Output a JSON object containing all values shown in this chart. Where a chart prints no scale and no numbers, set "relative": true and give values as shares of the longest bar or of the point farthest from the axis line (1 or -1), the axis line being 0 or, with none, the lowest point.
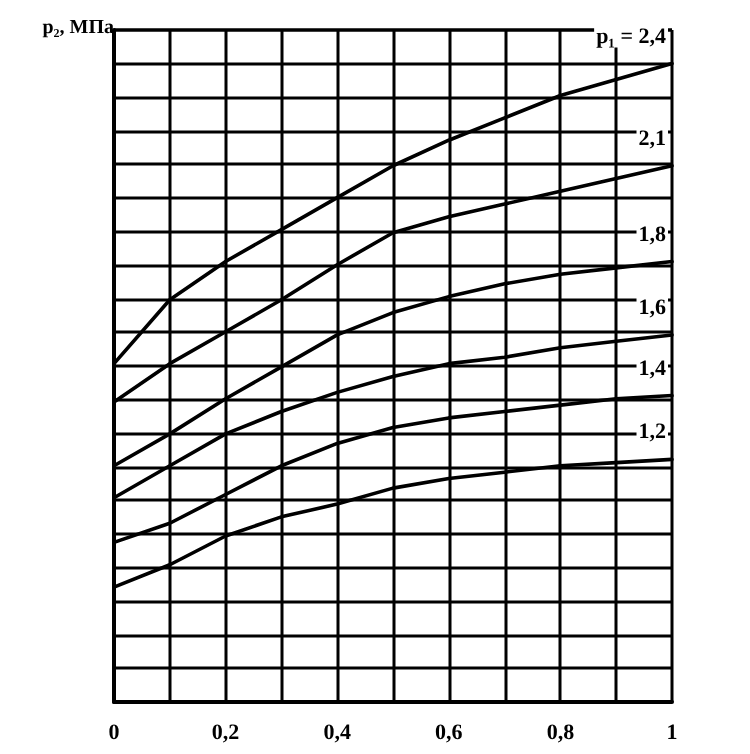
{
  "chart_data": {
    "type": "line",
    "relative": true,
    "ylabel": "p₂, МПа",
    "x": [
      0,
      0.1,
      0.2,
      0.3,
      0.4,
      0.5,
      0.6,
      0.7,
      0.8,
      0.9,
      1
    ],
    "xlim": [
      0,
      1
    ],
    "xticks": [
      0,
      {
        "value": 0.1,
        "label": null
      },
      {
        "value": 0.2,
        "label": "0,2"
      },
      {
        "value": 0.3,
        "label": null
      },
      {
        "value": 0.4,
        "label": "0,4"
      },
      {
        "value": 0.5,
        "label": null
      },
      {
        "value": 0.6,
        "label": "0,6"
      },
      {
        "value": 0.7,
        "label": null
      },
      {
        "value": 0.8,
        "label": "0,8"
      },
      {
        "value": 0.9,
        "label": null
      },
      1
    ],
    "series": [
      {
        "name": "p₁ = 2,4",
        "color": "#000000",
        "values": [
          0.53,
          0.63,
          0.69,
          0.74,
          0.79,
          0.84,
          0.88,
          0.915,
          0.95,
          0.975,
          1.0
        ]
      },
      {
        "name": "2,1",
        "color": "#000000",
        "values": [
          0.47,
          0.53,
          0.58,
          0.63,
          0.685,
          0.735,
          0.76,
          0.78,
          0.8,
          0.82,
          0.84
        ]
      },
      {
        "name": "1,8",
        "color": "#000000",
        "values": [
          0.37,
          0.42,
          0.475,
          0.525,
          0.575,
          0.61,
          0.635,
          0.655,
          0.67,
          0.68,
          0.69
        ]
      },
      {
        "name": "1,6",
        "color": "#000000",
        "values": [
          0.32,
          0.37,
          0.42,
          0.455,
          0.485,
          0.51,
          0.53,
          0.54,
          0.555,
          0.565,
          0.575
        ]
      },
      {
        "name": "1,4",
        "color": "#000000",
        "values": [
          0.25,
          0.28,
          0.325,
          0.37,
          0.405,
          0.43,
          0.445,
          0.455,
          0.465,
          0.475,
          0.48
        ]
      },
      {
        "name": "1,2",
        "color": "#000000",
        "values": [
          0.18,
          0.215,
          0.26,
          0.29,
          0.31,
          0.335,
          0.35,
          0.36,
          0.37,
          0.375,
          0.38
        ]
      }
    ],
    "grid": true,
    "marker": "none",
    "line_style": "solid",
    "legend": false
  }
}
